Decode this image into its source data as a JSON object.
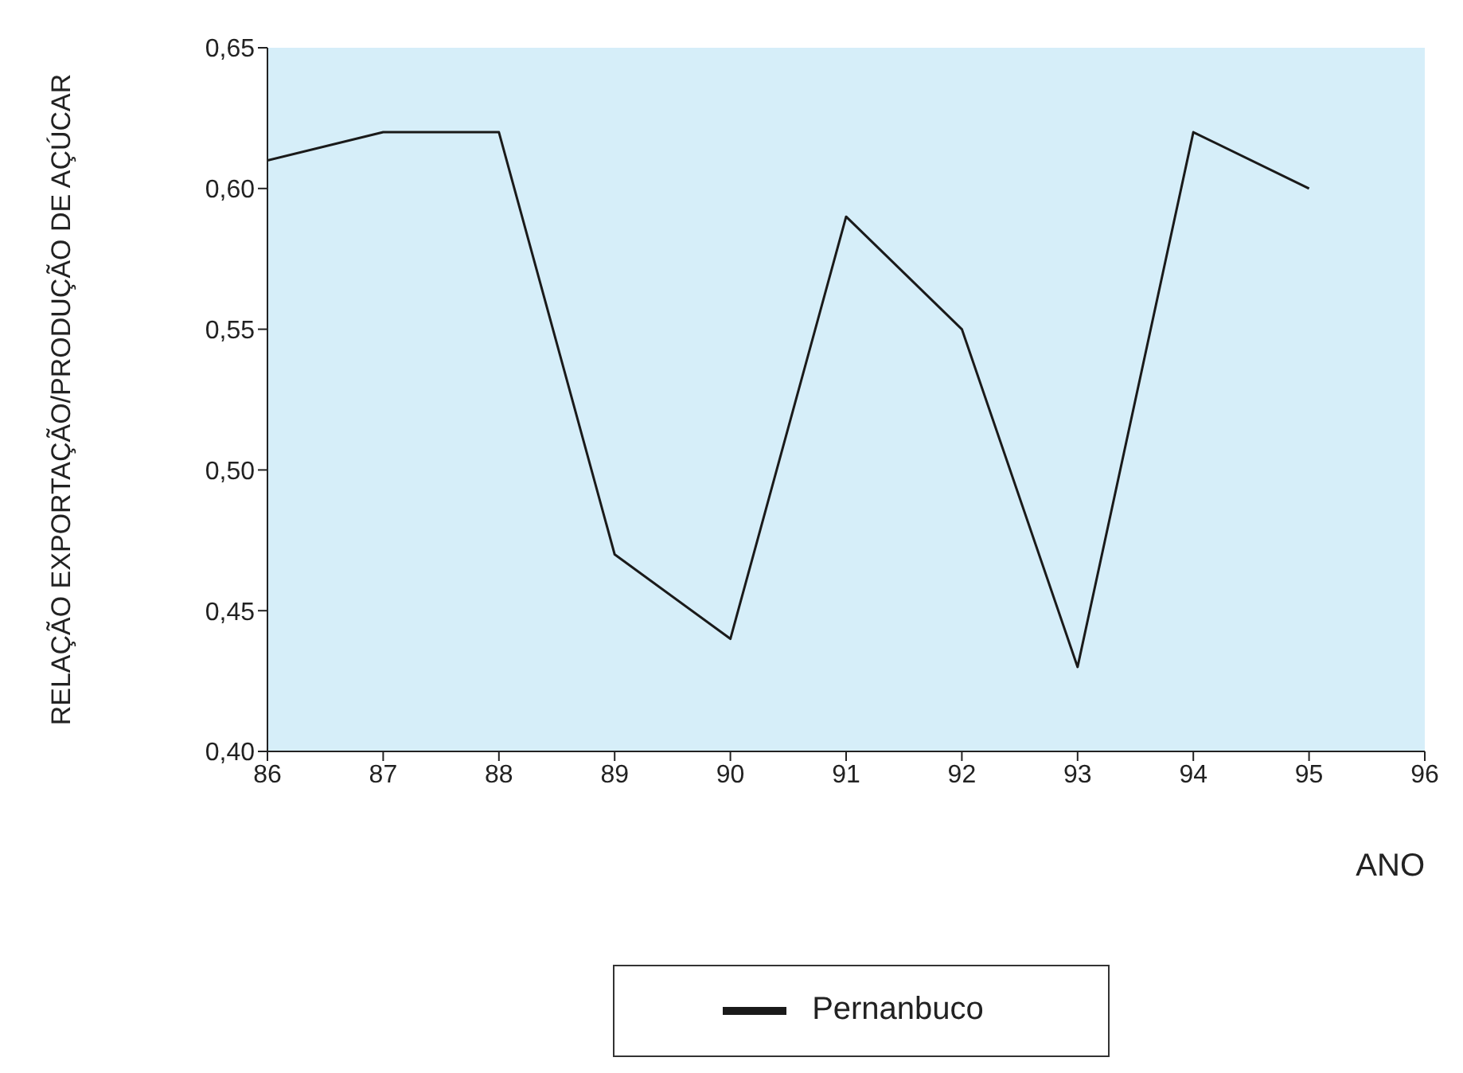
{
  "chart_data": {
    "type": "line",
    "xlabel": "ANO",
    "ylabel": "RELAÇÃO EXPORTAÇÃO/PRODUÇÃO DE AÇÚCAR",
    "x": [
      86,
      87,
      88,
      89,
      90,
      91,
      92,
      93,
      94,
      95
    ],
    "series": [
      {
        "name": "Pernanbuco",
        "color": "#1a1a1a",
        "values": [
          0.61,
          0.62,
          0.62,
          0.47,
          0.44,
          0.59,
          0.55,
          0.43,
          0.62,
          0.6
        ]
      }
    ],
    "xlim": [
      86,
      96
    ],
    "xticks": [
      86,
      87,
      88,
      89,
      90,
      91,
      92,
      93,
      94,
      95,
      96
    ],
    "ylim": [
      0.4,
      0.65
    ],
    "yticks": [
      {
        "value": 0.4,
        "label": "0,40"
      },
      {
        "value": 0.45,
        "label": "0,45"
      },
      {
        "value": 0.5,
        "label": "0,50"
      },
      {
        "value": 0.55,
        "label": "0,55"
      },
      {
        "value": 0.6,
        "label": "0,60"
      },
      {
        "value": 0.65,
        "label": "0,65"
      }
    ],
    "grid": false,
    "legend": "bottom",
    "marker": "none",
    "line_style": "solid"
  }
}
